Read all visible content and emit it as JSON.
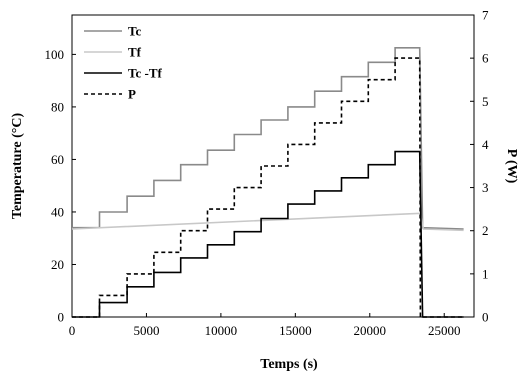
{
  "chart_data": {
    "type": "line",
    "xlabel": "Temps (s)",
    "ylabel": "Temperature (°C)",
    "y2label": "P (W)",
    "xlim": [
      0,
      27000
    ],
    "ylim": [
      0,
      115
    ],
    "y2lim": [
      0,
      7
    ],
    "xticks": [
      "0",
      "5000",
      "10000",
      "15000",
      "20000",
      "25000"
    ],
    "yticks": [
      "0",
      "20",
      "40",
      "60",
      "80",
      "100"
    ],
    "y2ticks": [
      "0",
      "1",
      "2",
      "3",
      "4",
      "5",
      "6",
      "7"
    ],
    "grid": false,
    "legend_position": "top-left",
    "series": [
      {
        "name": "Tc",
        "axis": "left",
        "color": "#8a8a8a",
        "dash": "none",
        "points": [
          [
            0,
            34
          ],
          [
            1850,
            34
          ],
          [
            1850,
            40
          ],
          [
            3700,
            40
          ],
          [
            3700,
            46
          ],
          [
            5500,
            46
          ],
          [
            5500,
            52
          ],
          [
            7300,
            52
          ],
          [
            7300,
            58
          ],
          [
            9100,
            58
          ],
          [
            9100,
            63.5
          ],
          [
            10900,
            63.5
          ],
          [
            10900,
            69.5
          ],
          [
            12700,
            69.5
          ],
          [
            12700,
            75
          ],
          [
            14500,
            75
          ],
          [
            14500,
            80
          ],
          [
            16300,
            80
          ],
          [
            16300,
            86
          ],
          [
            18100,
            86
          ],
          [
            18100,
            91.5
          ],
          [
            19900,
            91.5
          ],
          [
            19900,
            97
          ],
          [
            21700,
            97
          ],
          [
            21700,
            102.5
          ],
          [
            23350,
            102.5
          ],
          [
            23550,
            34
          ],
          [
            26300,
            33.5
          ]
        ]
      },
      {
        "name": "Tf",
        "axis": "left",
        "color": "#c8c8c8",
        "dash": "none",
        "points": [
          [
            0,
            33.5
          ],
          [
            23400,
            39.5
          ],
          [
            23600,
            33.5
          ],
          [
            26300,
            33
          ]
        ]
      },
      {
        "name": "Tc -Tf",
        "axis": "left",
        "color": "#000000",
        "dash": "none",
        "points": [
          [
            0,
            0
          ],
          [
            1850,
            0
          ],
          [
            1850,
            5.5
          ],
          [
            3700,
            5.5
          ],
          [
            3700,
            11.5
          ],
          [
            5500,
            11.5
          ],
          [
            5500,
            17
          ],
          [
            7300,
            17
          ],
          [
            7300,
            22.5
          ],
          [
            9100,
            22.5
          ],
          [
            9100,
            27.5
          ],
          [
            10900,
            27.5
          ],
          [
            10900,
            32.5
          ],
          [
            12700,
            32.5
          ],
          [
            12700,
            37.5
          ],
          [
            14500,
            37.5
          ],
          [
            14500,
            43
          ],
          [
            16300,
            43
          ],
          [
            16300,
            48
          ],
          [
            18100,
            48
          ],
          [
            18100,
            53
          ],
          [
            19900,
            53
          ],
          [
            19900,
            58
          ],
          [
            21700,
            58
          ],
          [
            21700,
            63
          ],
          [
            23350,
            63
          ],
          [
            23550,
            0
          ],
          [
            26300,
            0
          ]
        ]
      },
      {
        "name": "P",
        "axis": "right",
        "color": "#000000",
        "dash": "4,3",
        "points": [
          [
            0,
            0
          ],
          [
            1850,
            0
          ],
          [
            1850,
            0.5
          ],
          [
            3700,
            0.5
          ],
          [
            3700,
            1
          ],
          [
            5500,
            1
          ],
          [
            5500,
            1.5
          ],
          [
            7300,
            1.5
          ],
          [
            7300,
            2
          ],
          [
            9100,
            2
          ],
          [
            9100,
            2.5
          ],
          [
            10900,
            2.5
          ],
          [
            10900,
            3
          ],
          [
            12700,
            3
          ],
          [
            12700,
            3.5
          ],
          [
            14500,
            3.5
          ],
          [
            14500,
            4
          ],
          [
            16300,
            4
          ],
          [
            16300,
            4.5
          ],
          [
            18100,
            4.5
          ],
          [
            18100,
            5
          ],
          [
            19900,
            5
          ],
          [
            19900,
            5.5
          ],
          [
            21700,
            5.5
          ],
          [
            21700,
            6
          ],
          [
            23350,
            6
          ],
          [
            23400,
            0
          ],
          [
            26300,
            0
          ]
        ]
      }
    ]
  }
}
